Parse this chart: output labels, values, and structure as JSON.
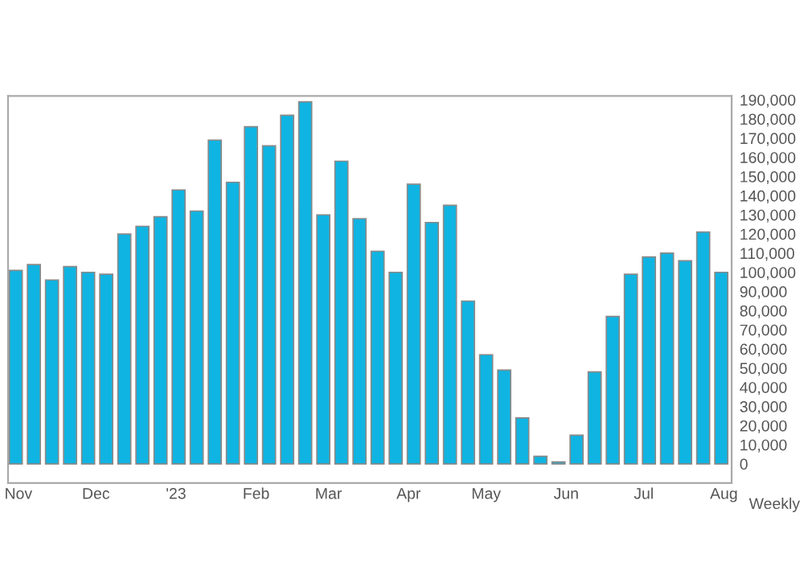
{
  "chart_data": {
    "type": "bar",
    "x": [
      "2022-10-31",
      "2022-11-07",
      "2022-11-14",
      "2022-11-21",
      "2022-11-28",
      "2022-12-05",
      "2022-12-12",
      "2022-12-19",
      "2022-12-26",
      "2023-01-02",
      "2023-01-09",
      "2023-01-16",
      "2023-01-23",
      "2023-01-30",
      "2023-02-06",
      "2023-02-13",
      "2023-02-20",
      "2023-02-27",
      "2023-03-06",
      "2023-03-13",
      "2023-03-20",
      "2023-03-27",
      "2023-04-03",
      "2023-04-10",
      "2023-04-17",
      "2023-04-24",
      "2023-05-01",
      "2023-05-08",
      "2023-05-15",
      "2023-05-22",
      "2023-05-29",
      "2023-06-05",
      "2023-06-12",
      "2023-06-19",
      "2023-06-26",
      "2023-07-03",
      "2023-07-10",
      "2023-07-17",
      "2023-07-24",
      "2023-07-31"
    ],
    "values": [
      101000,
      104000,
      96000,
      103000,
      100000,
      99000,
      120000,
      124000,
      129000,
      143000,
      132000,
      169000,
      147000,
      176000,
      166000,
      182000,
      189000,
      130000,
      158000,
      128000,
      111000,
      100000,
      146000,
      126000,
      135000,
      85000,
      57000,
      49000,
      24000,
      4000,
      1000,
      15000,
      48000,
      77000,
      99000,
      108000,
      110000,
      106000,
      121000,
      100000
    ],
    "color": "#0fb4e2",
    "xlim": [
      "2022-10-28",
      "2023-08-04"
    ],
    "xticks": [
      {
        "value": "2022-11-01",
        "label": "Nov"
      },
      {
        "value": "2022-12-01",
        "label": "Dec"
      },
      {
        "value": "2023-01-01",
        "label": "'23"
      },
      {
        "value": "2023-02-01",
        "label": "Feb"
      },
      {
        "value": "2023-03-01",
        "label": "Mar"
      },
      {
        "value": "2023-04-01",
        "label": "Apr"
      },
      {
        "value": "2023-05-01",
        "label": "May"
      },
      {
        "value": "2023-06-01",
        "label": "Jun"
      },
      {
        "value": "2023-07-01",
        "label": "Jul"
      },
      {
        "value": "2023-08-01",
        "label": "Aug"
      }
    ],
    "ylim": [
      -10000,
      192000
    ],
    "yticks": [
      {
        "value": 0,
        "label": "0"
      },
      {
        "value": 10000,
        "label": "10,000"
      },
      {
        "value": 20000,
        "label": "20,000"
      },
      {
        "value": 30000,
        "label": "30,000"
      },
      {
        "value": 40000,
        "label": "40,000"
      },
      {
        "value": 50000,
        "label": "50,000"
      },
      {
        "value": 60000,
        "label": "60,000"
      },
      {
        "value": 70000,
        "label": "70,000"
      },
      {
        "value": 80000,
        "label": "80,000"
      },
      {
        "value": 90000,
        "label": "90,000"
      },
      {
        "value": 100000,
        "label": "100,000"
      },
      {
        "value": 110000,
        "label": "110,000"
      },
      {
        "value": 120000,
        "label": "120,000"
      },
      {
        "value": 130000,
        "label": "130,000"
      },
      {
        "value": 140000,
        "label": "140,000"
      },
      {
        "value": 150000,
        "label": "150,000"
      },
      {
        "value": 160000,
        "label": "160,000"
      },
      {
        "value": 170000,
        "label": "170,000"
      },
      {
        "value": 180000,
        "label": "180,000"
      },
      {
        "value": 190000,
        "label": "190,000"
      }
    ],
    "annotations": [
      "Weekly"
    ],
    "grid": false,
    "legend": false
  }
}
